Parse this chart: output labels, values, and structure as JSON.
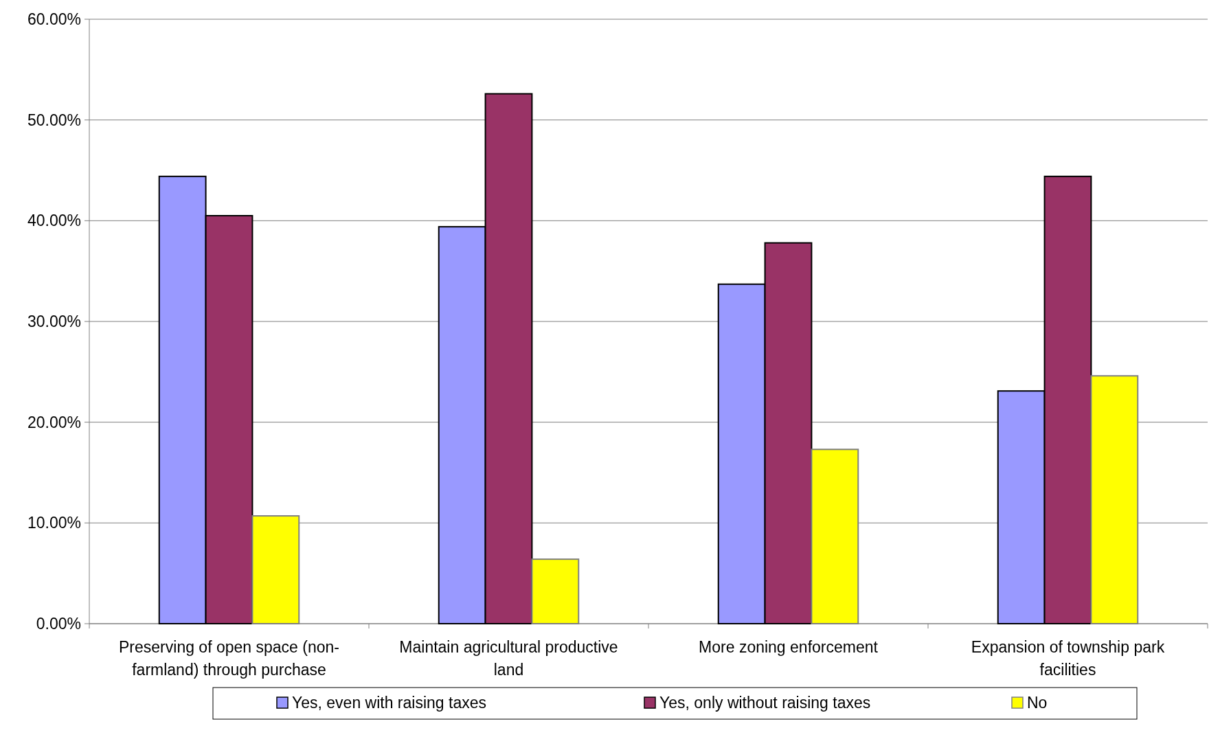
{
  "chart_data": {
    "type": "bar",
    "categories": [
      "Preserving of open space (non-farmland) through purchase",
      "Maintain agricultural productive land",
      "More zoning enforcement",
      "Expansion of township park facilities"
    ],
    "series": [
      {
        "name": "Yes, even with raising taxes",
        "color": "#9999ff",
        "values": [
          44.4,
          39.4,
          33.7,
          23.1
        ]
      },
      {
        "name": "Yes, only without raising taxes",
        "color": "#993366",
        "values": [
          40.5,
          52.6,
          37.8,
          44.4
        ]
      },
      {
        "name": "No",
        "color": "#ffff00",
        "values": [
          10.7,
          6.4,
          17.3,
          24.6
        ]
      }
    ],
    "ylim": [
      0,
      60
    ],
    "yticks": [
      {
        "value": 0,
        "label": "0.00%"
      },
      {
        "value": 10,
        "label": "10.00%"
      },
      {
        "value": 20,
        "label": "20.00%"
      },
      {
        "value": 30,
        "label": "30.00%"
      },
      {
        "value": 40,
        "label": "40.00%"
      },
      {
        "value": 50,
        "label": "50.00%"
      },
      {
        "value": 60,
        "label": "60.00%"
      }
    ],
    "grid": "y",
    "legend": "bottom"
  }
}
